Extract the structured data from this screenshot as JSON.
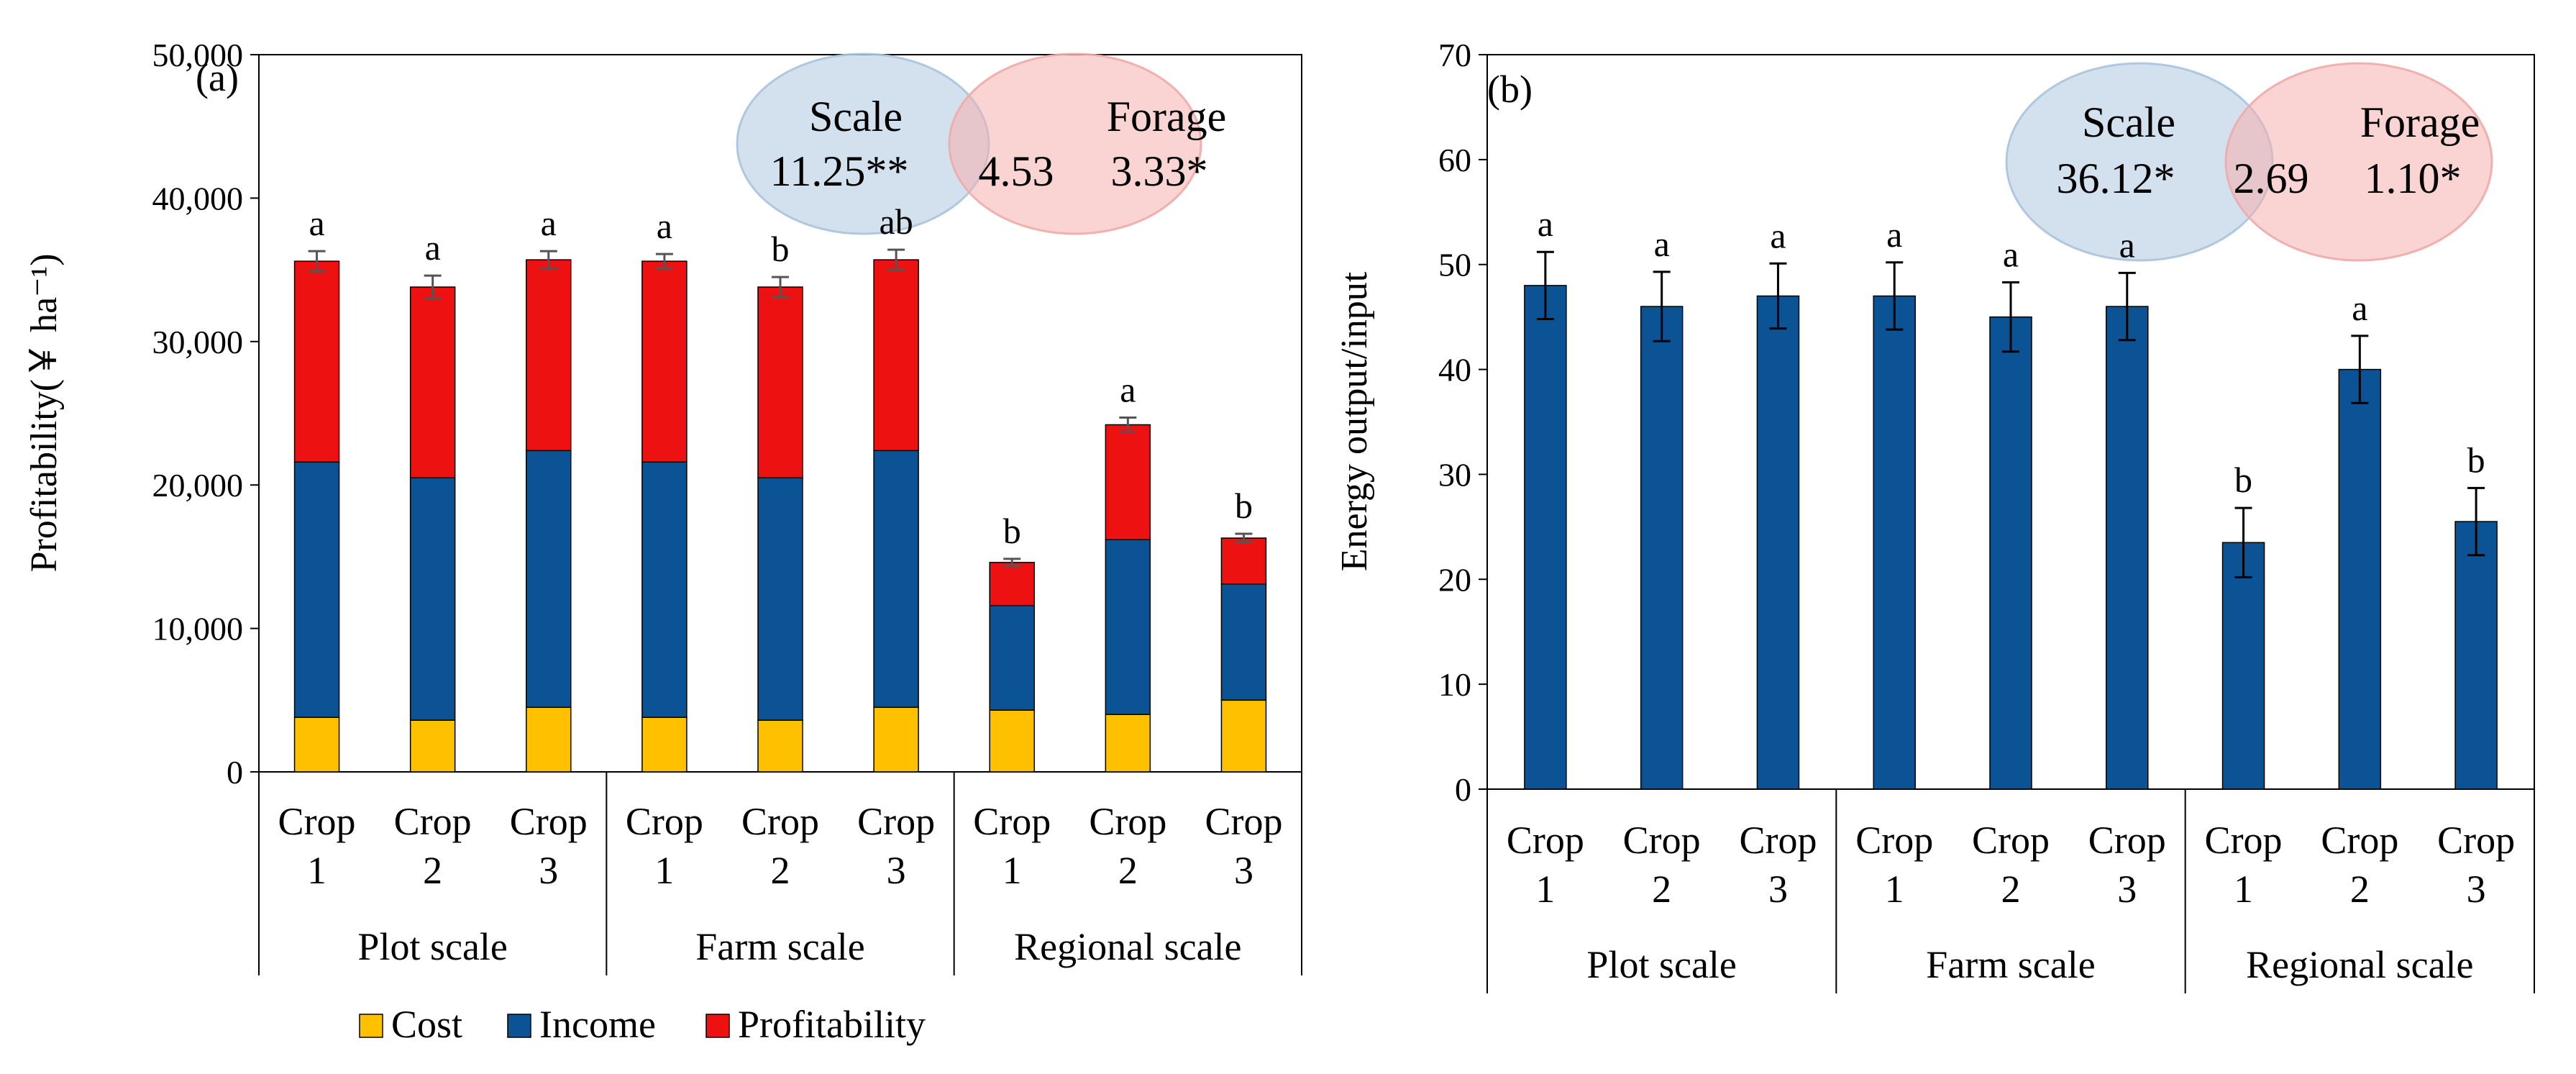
{
  "chart_data": [
    {
      "panel": "(a)",
      "type": "bar",
      "stacked": true,
      "ylabel": "Profitability(￥ ha⁻¹)",
      "ylim": [
        0,
        50000
      ],
      "yticks": [
        0,
        10000,
        20000,
        30000,
        40000,
        50000
      ],
      "ytick_labels": [
        "0",
        "10,000",
        "20,000",
        "30,000",
        "40,000",
        "50,000"
      ],
      "categories": [
        [
          "Crop",
          "1"
        ],
        [
          "Crop",
          "2"
        ],
        [
          "Crop",
          "3"
        ],
        [
          "Crop",
          "1"
        ],
        [
          "Crop",
          "2"
        ],
        [
          "Crop",
          "3"
        ],
        [
          "Crop",
          "1"
        ],
        [
          "Crop",
          "2"
        ],
        [
          "Crop",
          "3"
        ]
      ],
      "groups": [
        "Plot scale",
        "Farm scale",
        "Regional scale"
      ],
      "series": [
        {
          "name": "Cost",
          "color": "#FFC000",
          "values": [
            3800,
            3600,
            4500,
            3800,
            3600,
            4500,
            4300,
            4000,
            5000
          ]
        },
        {
          "name": "Income",
          "color": "#0B5394",
          "values": [
            17800,
            16900,
            17900,
            17800,
            16900,
            17900,
            7300,
            12200,
            8100
          ]
        },
        {
          "name": "Profitability",
          "color": "#EE1111",
          "values": [
            14000,
            13300,
            13300,
            14000,
            13300,
            13300,
            3000,
            8000,
            3200
          ]
        }
      ],
      "error_bars": [
        700,
        800,
        600,
        500,
        700,
        700,
        250,
        500,
        300
      ],
      "significance": [
        "a",
        "a",
        "a",
        "a",
        "b",
        "ab",
        "b",
        "a",
        "b"
      ],
      "legend": [
        "Cost",
        "Income",
        "Profitability"
      ],
      "venn": {
        "left_label": "Scale",
        "left_value": "11.25**",
        "overlap": "4.53",
        "right_label": "Forage",
        "right_value": "3.33*"
      }
    },
    {
      "panel": "(b)",
      "type": "bar",
      "ylabel": "Energy output/input",
      "ylim": [
        0,
        70
      ],
      "yticks": [
        0,
        10,
        20,
        30,
        40,
        50,
        60,
        70
      ],
      "ytick_labels": [
        "0",
        "10",
        "20",
        "30",
        "40",
        "50",
        "60",
        "70"
      ],
      "categories": [
        [
          "Crop",
          "1"
        ],
        [
          "Crop",
          "2"
        ],
        [
          "Crop",
          "3"
        ],
        [
          "Crop",
          "1"
        ],
        [
          "Crop",
          "2"
        ],
        [
          "Crop",
          "3"
        ],
        [
          "Crop",
          "1"
        ],
        [
          "Crop",
          "2"
        ],
        [
          "Crop",
          "3"
        ]
      ],
      "groups": [
        "Plot scale",
        "Farm scale",
        "Regional scale"
      ],
      "series": [
        {
          "name": "Energy output/input",
          "color": "#0B5394",
          "values": [
            48,
            46,
            47,
            47,
            45,
            46,
            23.5,
            40,
            25.5
          ]
        }
      ],
      "error_bars": [
        3.2,
        3.3,
        3.1,
        3.2,
        3.3,
        3.2,
        3.3,
        3.2,
        3.2
      ],
      "significance": [
        "a",
        "a",
        "a",
        "a",
        "a",
        "a",
        "b",
        "a",
        "b"
      ],
      "venn": {
        "left_label": "Scale",
        "left_value": "36.12*",
        "overlap": "2.69",
        "right_label": "Forage",
        "right_value": "1.10*"
      }
    }
  ]
}
